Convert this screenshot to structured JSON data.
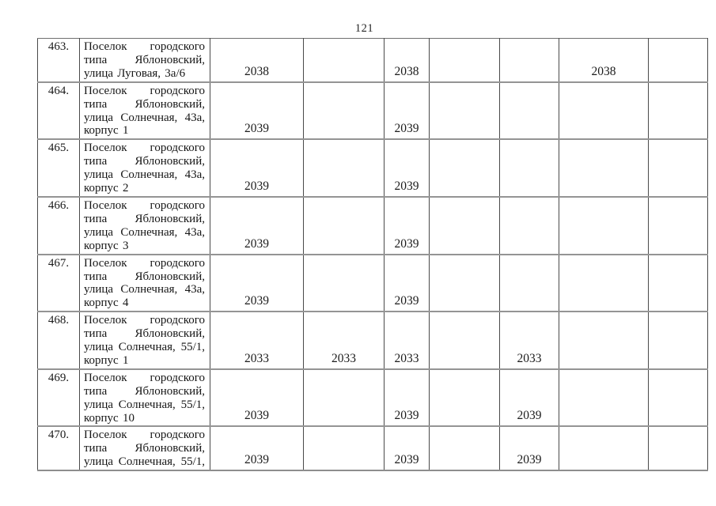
{
  "page": {
    "number": "121"
  },
  "table": {
    "rows": [
      {
        "num": "463.",
        "address_lines": [
          "Поселок городского",
          "типа Яблоновский,",
          "улица Луговая, 3а/6"
        ],
        "last_line_left": true,
        "values": [
          "2038",
          "",
          "2038",
          "",
          "",
          "2038",
          ""
        ]
      },
      {
        "num": "464.",
        "address_lines": [
          "Поселок городского",
          "типа Яблоновский,",
          "улица Солнечная, 43а,",
          "корпус 1"
        ],
        "last_line_left": true,
        "values": [
          "2039",
          "",
          "2039",
          "",
          "",
          "",
          ""
        ]
      },
      {
        "num": "465.",
        "address_lines": [
          "Поселок городского",
          "типа Яблоновский,",
          "улица Солнечная, 43а,",
          "корпус 2"
        ],
        "last_line_left": true,
        "values": [
          "2039",
          "",
          "2039",
          "",
          "",
          "",
          ""
        ]
      },
      {
        "num": "466.",
        "address_lines": [
          "Поселок городского",
          "типа Яблоновский,",
          "улица Солнечная, 43а,",
          "корпус 3"
        ],
        "last_line_left": true,
        "values": [
          "2039",
          "",
          "2039",
          "",
          "",
          "",
          ""
        ]
      },
      {
        "num": "467.",
        "address_lines": [
          "Поселок городского",
          "типа Яблоновский,",
          "улица Солнечная, 43а,",
          "корпус 4"
        ],
        "last_line_left": true,
        "values": [
          "2039",
          "",
          "2039",
          "",
          "",
          "",
          ""
        ]
      },
      {
        "num": "468.",
        "address_lines": [
          "Поселок городского",
          "типа Яблоновский,",
          "улица Солнечная, 55/1,",
          "корпус 1"
        ],
        "last_line_left": true,
        "values": [
          "2033",
          "2033",
          "2033",
          "",
          "2033",
          "",
          ""
        ]
      },
      {
        "num": "469.",
        "address_lines": [
          "Поселок городского",
          "типа Яблоновский,",
          "улица Солнечная, 55/1,",
          "корпус 10"
        ],
        "last_line_left": true,
        "values": [
          "2039",
          "",
          "2039",
          "",
          "2039",
          "",
          ""
        ]
      },
      {
        "num": "470.",
        "address_lines": [
          "Поселок городского",
          "типа Яблоновский,",
          "улица Солнечная, 55/1,"
        ],
        "last_line_left": false,
        "values": [
          "2039",
          "",
          "2039",
          "",
          "2039",
          "",
          ""
        ]
      }
    ]
  }
}
